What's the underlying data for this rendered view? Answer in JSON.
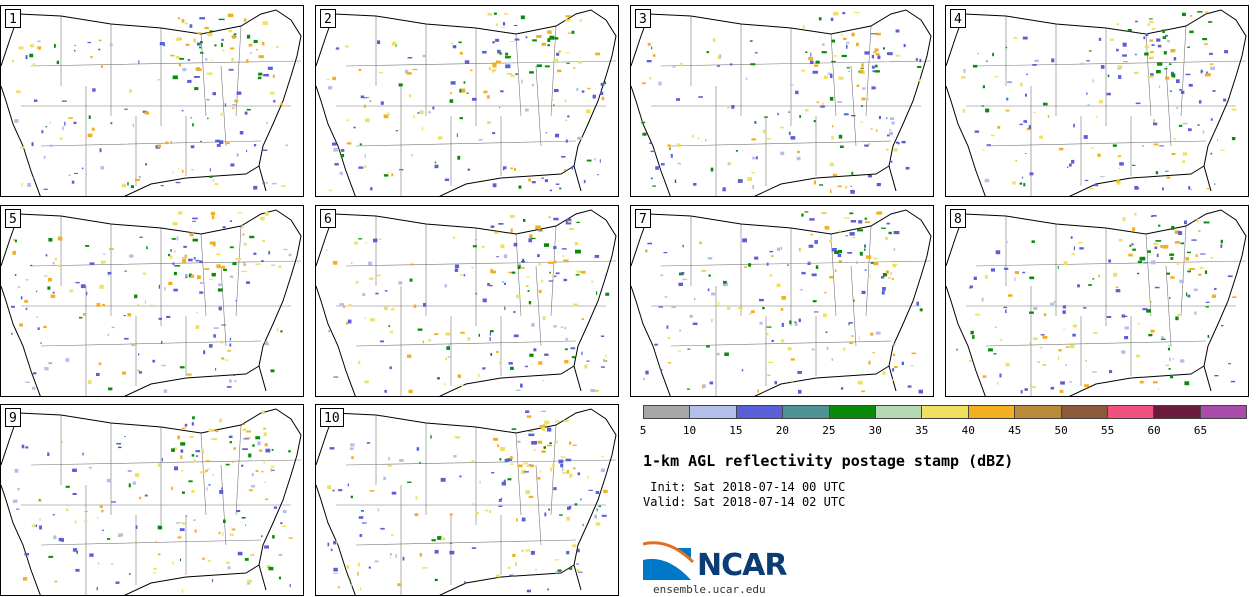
{
  "panels": [
    {
      "label": "1"
    },
    {
      "label": "2"
    },
    {
      "label": "3"
    },
    {
      "label": "4"
    },
    {
      "label": "5"
    },
    {
      "label": "6"
    },
    {
      "label": "7"
    },
    {
      "label": "8"
    },
    {
      "label": "9"
    },
    {
      "label": "10"
    }
  ],
  "colorbar": {
    "colors": [
      "#a6a6a6",
      "#b3bfe8",
      "#5a5fd6",
      "#4f9494",
      "#0a8a0a",
      "#b5d8b5",
      "#f0e060",
      "#f0b020",
      "#b88a3a",
      "#8a5a3a",
      "#f05080",
      "#6a1a3a",
      "#aa4aaa"
    ],
    "ticks": [
      "5",
      "10",
      "15",
      "20",
      "25",
      "30",
      "35",
      "40",
      "45",
      "50",
      "55",
      "60",
      "65"
    ]
  },
  "title": "1-km AGL reflectivity postage stamp (dBZ)",
  "init": " Init: Sat 2018-07-14 00 UTC",
  "valid": "Valid: Sat 2018-07-14 02 UTC",
  "logo": {
    "text": "NCAR",
    "site": "ensemble.ucar.edu"
  }
}
